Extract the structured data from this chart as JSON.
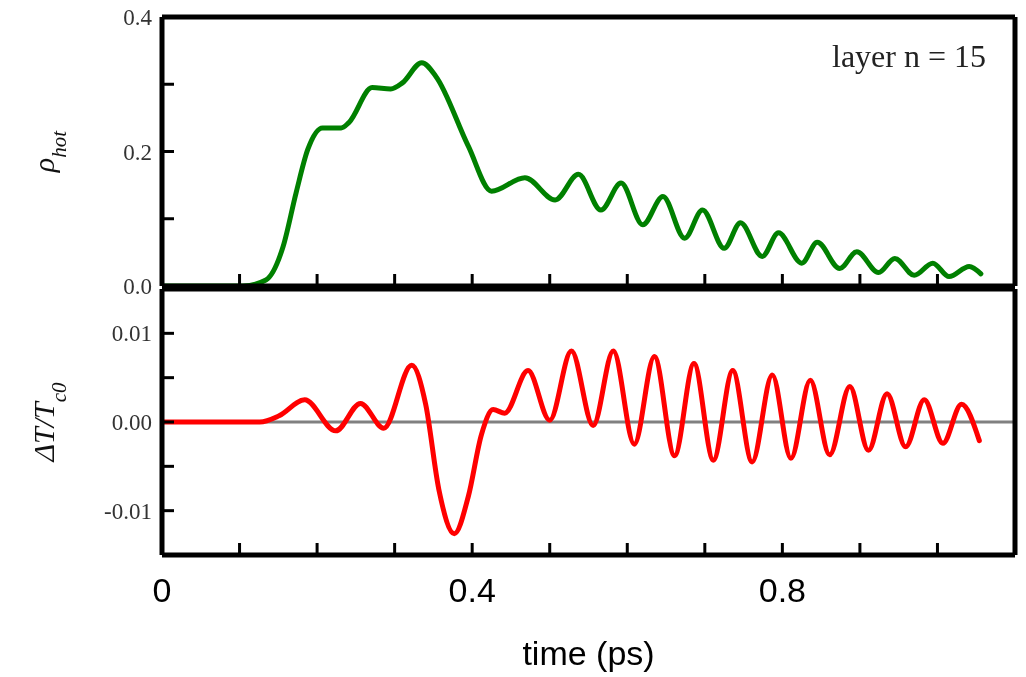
{
  "chart_data": [
    {
      "type": "line",
      "ylabel": "ρ$_{hot}$",
      "annotations": [
        "layer n = 15"
      ],
      "tick_labels": "y",
      "xlim": [
        0,
        1.1
      ],
      "xticks": [
        0,
        {
          "value": 0.1,
          "label": null
        },
        {
          "value": 0.2,
          "label": null
        },
        {
          "value": 0.3,
          "label": null
        },
        {
          "value": 0.4,
          "label": null
        },
        {
          "value": 0.5,
          "label": null
        },
        {
          "value": 0.6,
          "label": null
        },
        {
          "value": 0.7,
          "label": null
        },
        {
          "value": 0.8,
          "label": null
        },
        {
          "value": 0.9,
          "label": null
        },
        {
          "value": 1.0,
          "label": null
        }
      ],
      "ylim": [
        0,
        0.4
      ],
      "yticks": [
        {
          "value": 0,
          "label": "0.0"
        },
        {
          "value": 0.1,
          "label": null
        },
        0.2,
        {
          "value": 0.3,
          "label": null
        },
        0.4
      ],
      "x": [
        0,
        0.104,
        0.134,
        0.156,
        0.173,
        0.188,
        0.207,
        0.231,
        0.241,
        0.271,
        0.295,
        0.31,
        0.335,
        0.353,
        0.395,
        0.425,
        0.468,
        0.507,
        0.537,
        0.566,
        0.592,
        0.62,
        0.646,
        0.674,
        0.697,
        0.725,
        0.746,
        0.774,
        0.795,
        0.825,
        0.845,
        0.874,
        0.896,
        0.924,
        0.945,
        0.97,
        0.994,
        1.015,
        1.041,
        1.056
      ],
      "series": [
        {
          "color": "#008000",
          "values": [
            0,
            0,
            0.009,
            0.058,
            0.139,
            0.203,
            0.235,
            0.235,
            0.243,
            0.295,
            0.293,
            0.302,
            0.332,
            0.312,
            0.208,
            0.141,
            0.161,
            0.128,
            0.166,
            0.113,
            0.153,
            0.091,
            0.133,
            0.071,
            0.113,
            0.056,
            0.094,
            0.044,
            0.079,
            0.034,
            0.065,
            0.026,
            0.051,
            0.02,
            0.041,
            0.016,
            0.034,
            0.014,
            0.029,
            0.018
          ]
        }
      ]
    },
    {
      "type": "line",
      "ylabel": "ΔT/T$_{c0}$",
      "xlabel": "time (ps)",
      "xlim": [
        0,
        1.1
      ],
      "xticks": [
        0,
        {
          "value": 0.1,
          "label": null
        },
        {
          "value": 0.2,
          "label": null
        },
        {
          "value": 0.3,
          "label": null
        },
        0.4,
        {
          "value": 0.5,
          "label": null
        },
        {
          "value": 0.6,
          "label": null
        },
        {
          "value": 0.7,
          "label": null
        },
        0.8,
        {
          "value": 0.9,
          "label": null
        },
        {
          "value": 1.0,
          "label": null
        }
      ],
      "ylim": [
        -0.015,
        0.015
      ],
      "yticks": [
        -0.01,
        {
          "value": -0.005,
          "label": null
        },
        {
          "value": 0,
          "label": "0.00"
        },
        {
          "value": 0.005,
          "label": null
        },
        0.01
      ],
      "ref_lines": [
        {
          "axis": "y",
          "value": 0,
          "color": "#808080"
        }
      ],
      "x": [
        0,
        0.126,
        0.151,
        0.184,
        0.224,
        0.256,
        0.286,
        0.322,
        0.34,
        0.357,
        0.377,
        0.395,
        0.412,
        0.427,
        0.442,
        0.472,
        0.5,
        0.528,
        0.556,
        0.582,
        0.609,
        0.635,
        0.661,
        0.686,
        0.711,
        0.736,
        0.761,
        0.787,
        0.811,
        0.836,
        0.861,
        0.887,
        0.911,
        0.935,
        0.959,
        0.983,
        1.007,
        1.031,
        1.054
      ],
      "series": [
        {
          "color": "#ff0000",
          "values": [
            0,
            0,
            0.0007,
            0.0025,
            -0.001,
            0.0021,
            -0.0007,
            0.0064,
            0.002,
            -0.0076,
            -0.0126,
            -0.0084,
            -0.0014,
            0.0014,
            0.001,
            0.0058,
            0.0002,
            0.008,
            -0.0004,
            0.008,
            -0.0025,
            0.0074,
            -0.0038,
            0.0066,
            -0.0043,
            0.0058,
            -0.0045,
            0.0053,
            -0.0041,
            0.0047,
            -0.0037,
            0.004,
            -0.0032,
            0.0032,
            -0.0028,
            0.0025,
            -0.0024,
            0.002,
            -0.0021
          ]
        }
      ]
    }
  ]
}
